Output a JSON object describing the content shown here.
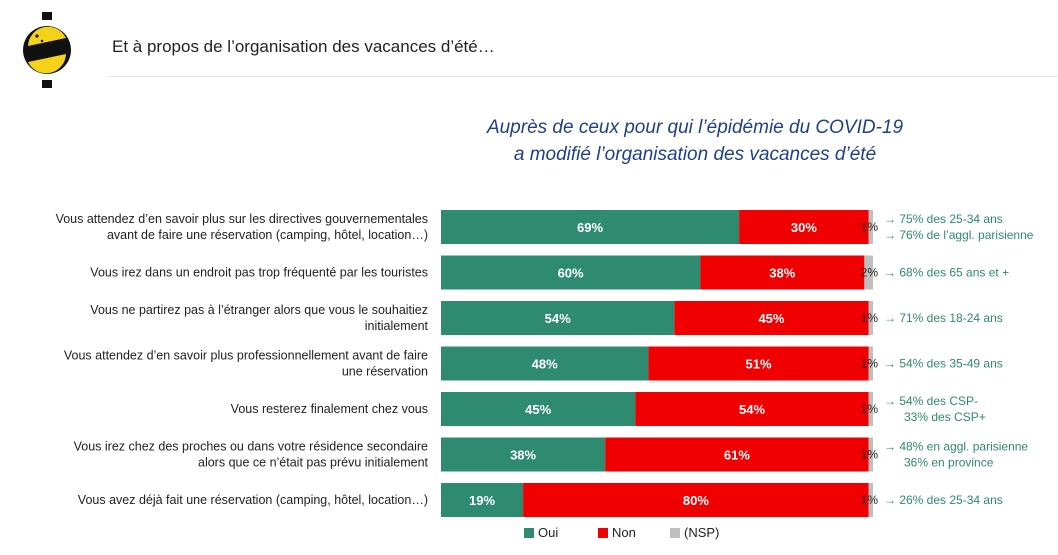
{
  "header": {
    "title": "Et à propos de l’organisation des vacances d’été…"
  },
  "chart_data": {
    "type": "bar",
    "stacked": true,
    "orientation": "horizontal",
    "title_lines": [
      "Auprès de ceux pour qui l’épidémie du COVID-19",
      "a modifié l’organisation des vacances d’été"
    ],
    "categories": [
      [
        "Vous attendez d’en savoir plus sur les directives gouvernementales",
        "avant de faire une réservation (camping, hôtel, location…)"
      ],
      [
        "Vous irez dans un endroit pas trop fréquenté par les touristes"
      ],
      [
        "Vous ne partirez pas à l’étranger alors que vous le souhaitiez",
        "initialement"
      ],
      [
        "Vous attendez d’en savoir plus professionnellement avant de faire",
        "une réservation"
      ],
      [
        "Vous resterez finalement chez vous"
      ],
      [
        "Vous irez chez des proches ou dans votre résidence secondaire",
        "alors que ce n’était pas prévu initialement"
      ],
      [
        "Vous avez déjà fait une réservation (camping, hôtel, location…)"
      ]
    ],
    "series": [
      {
        "name": "Oui",
        "color": "#2e8b6f",
        "values": [
          69,
          60,
          54,
          48,
          45,
          38,
          19
        ],
        "labels": [
          "69%",
          "60%",
          "54%",
          "48%",
          "45%",
          "38%",
          "19%"
        ]
      },
      {
        "name": "Non",
        "color": "#f00000",
        "values": [
          30,
          38,
          45,
          51,
          54,
          61,
          80
        ],
        "labels": [
          "30%",
          "38%",
          "45%",
          "51%",
          "54%",
          "61%",
          "80%"
        ]
      },
      {
        "name": "(NSP)",
        "color": "#bfbfbf",
        "values": [
          1,
          2,
          1,
          1,
          1,
          1,
          1
        ],
        "labels": [
          "1%",
          "2%",
          "1%",
          "1%",
          "1%",
          "1%",
          "1%"
        ]
      }
    ],
    "annotations": [
      [
        "→ 75% des 25-34 ans",
        "→ 76% de l’aggl. parisienne"
      ],
      [
        "→ 68% des 65 ans et +"
      ],
      [
        "→ 71% des 18-24 ans"
      ],
      [
        "→ 54% des 35-49 ans"
      ],
      [
        "→ 54% des CSP-",
        "33% des CSP+"
      ],
      [
        "→ 48% en aggl. parisienne",
        "36%  en province"
      ],
      [
        "→ 26% des 25-34 ans"
      ]
    ],
    "xlim": [
      0,
      100
    ],
    "legend_position": "bottom",
    "grid": false
  }
}
